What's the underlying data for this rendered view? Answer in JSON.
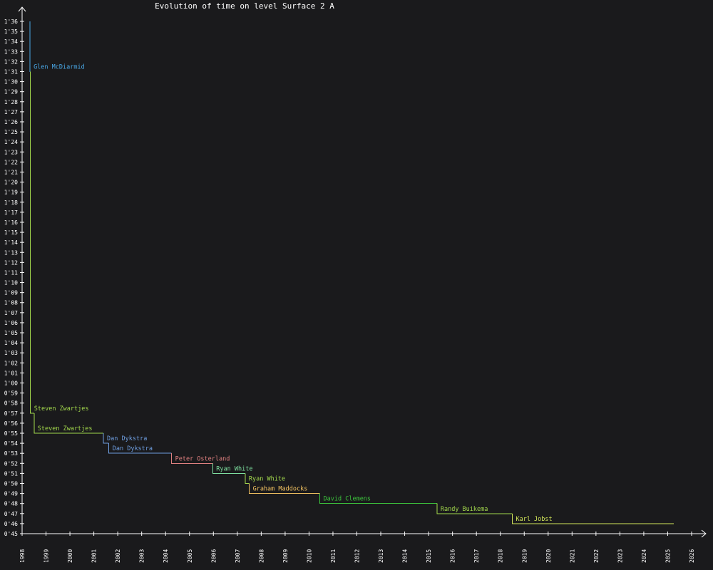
{
  "chart_data": {
    "type": "line",
    "title": "Evolution of time on level Surface 2 A",
    "xlabel": "",
    "ylabel": "",
    "x_ticks": [
      "1998",
      "1999",
      "2000",
      "2001",
      "2002",
      "2003",
      "2004",
      "2005",
      "2006",
      "2007",
      "2008",
      "2009",
      "2010",
      "2011",
      "2012",
      "2013",
      "2014",
      "2015",
      "2016",
      "2017",
      "2018",
      "2019",
      "2020",
      "2021",
      "2022",
      "2023",
      "2024",
      "2025",
      "2026"
    ],
    "y_ticks": [
      "0'45",
      "0'46",
      "0'47",
      "0'48",
      "0'49",
      "0'50",
      "0'51",
      "0'52",
      "0'53",
      "0'54",
      "0'55",
      "0'56",
      "0'57",
      "0'58",
      "0'59",
      "1'00",
      "1'01",
      "1'02",
      "1'03",
      "1'04",
      "1'05",
      "1'06",
      "1'07",
      "1'08",
      "1'09",
      "1'10",
      "1'11",
      "1'12",
      "1'13",
      "1'14",
      "1'15",
      "1'16",
      "1'17",
      "1'18",
      "1'19",
      "1'20",
      "1'21",
      "1'22",
      "1'23",
      "1'24",
      "1'25",
      "1'26",
      "1'27",
      "1'28",
      "1'29",
      "1'30",
      "1'31",
      "1'32",
      "1'33",
      "1'34",
      "1'35",
      "1'36"
    ],
    "xlim": [
      1998.0,
      2026.0
    ],
    "ylim": [
      45,
      96
    ],
    "grid": false,
    "records": [
      {
        "name": "Glen McDiarmid",
        "start": 1998.33,
        "end": 1998.35,
        "from": 96,
        "time": 91,
        "color": "#4aa9e8"
      },
      {
        "name": "Steven Zwartjes",
        "start": 1998.35,
        "end": 1998.5,
        "from": 91,
        "time": 57,
        "color": "#a3d94c"
      },
      {
        "name": "Steven Zwartjes",
        "start": 1998.5,
        "end": 2001.4,
        "from": 57,
        "time": 55,
        "color": "#a3d94c"
      },
      {
        "name": "Dan Dykstra",
        "start": 2001.4,
        "end": 2001.63,
        "from": 55,
        "time": 54,
        "color": "#6e9ee0"
      },
      {
        "name": "Dan Dykstra",
        "start": 2001.63,
        "end": 2004.25,
        "from": 54,
        "time": 53,
        "color": "#6e9ee0"
      },
      {
        "name": "Peter Osterland",
        "start": 2004.25,
        "end": 2005.97,
        "from": 53,
        "time": 52,
        "color": "#e08080"
      },
      {
        "name": "Ryan White",
        "start": 2005.97,
        "end": 2007.33,
        "from": 52,
        "time": 51,
        "color": "#7ee0a0"
      },
      {
        "name": "Ryan White",
        "start": 2007.33,
        "end": 2007.5,
        "from": 51,
        "time": 50,
        "color": "#a3d94c"
      },
      {
        "name": "Graham Maddocks",
        "start": 2007.5,
        "end": 2010.45,
        "from": 50,
        "time": 49,
        "color": "#f0c060"
      },
      {
        "name": "David Clemens",
        "start": 2010.45,
        "end": 2015.35,
        "from": 49,
        "time": 48,
        "color": "#3cc43c"
      },
      {
        "name": "Randy Buikema",
        "start": 2015.35,
        "end": 2018.5,
        "from": 48,
        "time": 47,
        "color": "#a3d94c"
      },
      {
        "name": "Karl Jobst",
        "start": 2018.5,
        "end": 2025.25,
        "from": 47,
        "time": 46,
        "color": "#d4e85a"
      }
    ]
  }
}
